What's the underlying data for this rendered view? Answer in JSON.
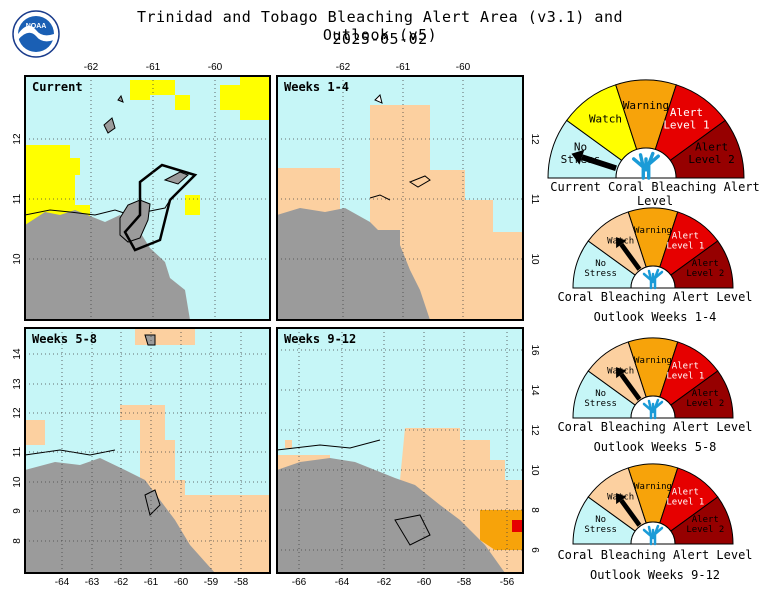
{
  "header": {
    "title_line1": "Trinidad and Tobago Bleaching Alert Area (v3.1) and Outlook (v5)",
    "title_line2": "2025-05-02",
    "logo_text": "NOAA"
  },
  "colors": {
    "no_stress": "#c6f6f7",
    "watch": "#ffff00",
    "watch_outlook": "#fcd0a0",
    "warning": "#f7a30a",
    "alert1": "#e60000",
    "alert2": "#960000",
    "land": "#9b9b9b",
    "grid": "#444444"
  },
  "panels": [
    {
      "label": "Current",
      "x_ticks": [
        "-62",
        "-61",
        "-60"
      ],
      "y_ticks": [
        "12",
        "11",
        "10"
      ]
    },
    {
      "label": "Weeks 1-4",
      "x_ticks": [
        "-62",
        "-61",
        "-60"
      ],
      "y_ticks": [
        "12",
        "11",
        "10"
      ]
    },
    {
      "label": "Weeks 5-8",
      "x_ticks": [
        "-64",
        "-63",
        "-62",
        "-61",
        "-60",
        "-59",
        "-58"
      ],
      "y_ticks": [
        "14",
        "13",
        "12",
        "11",
        "10",
        "9",
        "8"
      ]
    },
    {
      "label": "Weeks 9-12",
      "x_ticks": [
        "-66",
        "-64",
        "-62",
        "-60",
        "-58",
        "-56"
      ],
      "y_ticks": [
        "16",
        "14",
        "12",
        "10",
        "8",
        "6"
      ]
    }
  ],
  "gauges": [
    {
      "segments": [
        "No\nStress",
        "Watch",
        "Warning",
        "Alert\nLevel 1",
        "Alert\nLevel 2"
      ],
      "level": 0,
      "title1": "Current Coral Bleaching Alert Level",
      "title2": ""
    },
    {
      "segments": [
        "No\nStress",
        "Watch",
        "Warning",
        "Alert\nLevel 1",
        "Alert\nLevel 2"
      ],
      "level": 1,
      "title1": "Coral Bleaching Alert Level",
      "title2": "Outlook Weeks 1-4"
    },
    {
      "segments": [
        "No\nStress",
        "Watch",
        "Warning",
        "Alert\nLevel 1",
        "Alert\nLevel 2"
      ],
      "level": 1,
      "title1": "Coral Bleaching Alert Level",
      "title2": "Outlook Weeks 5-8"
    },
    {
      "segments": [
        "No\nStress",
        "Watch",
        "Warning",
        "Alert\nLevel 1",
        "Alert\nLevel 2"
      ],
      "level": 1,
      "title1": "Coral Bleaching Alert Level",
      "title2": "Outlook Weeks 9-12"
    }
  ]
}
